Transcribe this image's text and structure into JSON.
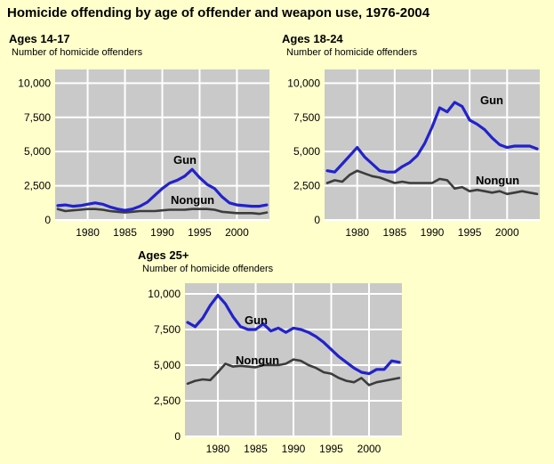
{
  "title": "Homicide offending by age of offender and weapon use, 1976-2004",
  "colors": {
    "background": "#FFFFCC",
    "plot_background": "#C9C9C9",
    "gridline": "#FFFFFF",
    "gun_line": "#2222CC",
    "nongun_line": "#3C3C3C",
    "text": "#000000"
  },
  "chart_data": [
    {
      "type": "line",
      "title": "Ages 14-17",
      "ylabel": "Number of homicide offenders",
      "xlabel": "",
      "x": [
        1976,
        1977,
        1978,
        1979,
        1980,
        1981,
        1982,
        1983,
        1984,
        1985,
        1986,
        1987,
        1988,
        1989,
        1990,
        1991,
        1992,
        1993,
        1994,
        1995,
        1996,
        1997,
        1998,
        1999,
        2000,
        2001,
        2002,
        2003,
        2004
      ],
      "xticks": [
        1980,
        1985,
        1990,
        1995,
        2000
      ],
      "yticks": [
        0,
        2500,
        5000,
        7500,
        10000
      ],
      "ytick_labels": [
        "0",
        "2,500",
        "5,000",
        "7,500",
        "10,000"
      ],
      "ylim": [
        0,
        11000
      ],
      "grid": true,
      "legend_position": "inline-labels",
      "series": [
        {
          "name": "Gun",
          "color": "#2222CC",
          "values": [
            1050,
            1100,
            1000,
            1050,
            1150,
            1250,
            1150,
            950,
            800,
            700,
            800,
            1000,
            1300,
            1800,
            2300,
            2700,
            2900,
            3200,
            3700,
            3100,
            2600,
            2300,
            1700,
            1250,
            1100,
            1050,
            1000,
            1000,
            1100
          ]
        },
        {
          "name": "Nongun",
          "color": "#3C3C3C",
          "values": [
            800,
            650,
            700,
            750,
            800,
            800,
            750,
            650,
            600,
            550,
            600,
            650,
            650,
            650,
            700,
            750,
            750,
            750,
            800,
            800,
            800,
            750,
            600,
            550,
            500,
            500,
            500,
            450,
            550
          ]
        }
      ]
    },
    {
      "type": "line",
      "title": "Ages 18-24",
      "ylabel": "Number of homicide offenders",
      "xlabel": "",
      "x": [
        1976,
        1977,
        1978,
        1979,
        1980,
        1981,
        1982,
        1983,
        1984,
        1985,
        1986,
        1987,
        1988,
        1989,
        1990,
        1991,
        1992,
        1993,
        1994,
        1995,
        1996,
        1997,
        1998,
        1999,
        2000,
        2001,
        2002,
        2003,
        2004
      ],
      "xticks": [
        1980,
        1985,
        1990,
        1995,
        2000
      ],
      "yticks": [
        0,
        2500,
        5000,
        7500,
        10000
      ],
      "ytick_labels": [
        "0",
        "2,500",
        "5,000",
        "7,500",
        "10,000"
      ],
      "ylim": [
        0,
        11000
      ],
      "grid": true,
      "legend_position": "inline-labels",
      "series": [
        {
          "name": "Gun",
          "color": "#2222CC",
          "values": [
            3600,
            3500,
            4100,
            4700,
            5300,
            4600,
            4100,
            3600,
            3500,
            3500,
            3900,
            4200,
            4700,
            5600,
            6800,
            8200,
            7900,
            8600,
            8300,
            7300,
            7000,
            6600,
            6000,
            5500,
            5300,
            5400,
            5400,
            5400,
            5200
          ]
        },
        {
          "name": "Nongun",
          "color": "#3C3C3C",
          "values": [
            2700,
            2900,
            2800,
            3300,
            3600,
            3400,
            3200,
            3100,
            2900,
            2700,
            2800,
            2700,
            2700,
            2700,
            2700,
            3000,
            2900,
            2300,
            2400,
            2100,
            2200,
            2100,
            2000,
            2100,
            1900,
            2000,
            2100,
            2000,
            1900
          ]
        }
      ]
    },
    {
      "type": "line",
      "title": "Ages 25+",
      "ylabel": "Number of homicide offenders",
      "xlabel": "",
      "x": [
        1976,
        1977,
        1978,
        1979,
        1980,
        1981,
        1982,
        1983,
        1984,
        1985,
        1986,
        1987,
        1988,
        1989,
        1990,
        1991,
        1992,
        1993,
        1994,
        1995,
        1996,
        1997,
        1998,
        1999,
        2000,
        2001,
        2002,
        2003,
        2004
      ],
      "xticks": [
        1980,
        1985,
        1990,
        1995,
        2000
      ],
      "yticks": [
        0,
        2500,
        5000,
        7500,
        10000
      ],
      "ytick_labels": [
        "0",
        "2,500",
        "5,000",
        "7,500",
        "10,000"
      ],
      "ylim": [
        0,
        10750
      ],
      "grid": true,
      "legend_position": "inline-labels",
      "series": [
        {
          "name": "Gun",
          "color": "#2222CC",
          "values": [
            8000,
            7700,
            8300,
            9200,
            9900,
            9300,
            8400,
            7700,
            7500,
            7500,
            7900,
            7400,
            7600,
            7300,
            7600,
            7500,
            7300,
            7000,
            6600,
            6100,
            5600,
            5200,
            4800,
            4500,
            4400,
            4700,
            4700,
            5300,
            5200
          ]
        },
        {
          "name": "Nongun",
          "color": "#3C3C3C",
          "values": [
            3700,
            3900,
            4000,
            3950,
            4500,
            5100,
            4900,
            4950,
            4900,
            4850,
            5000,
            5000,
            5000,
            5100,
            5400,
            5300,
            5000,
            4800,
            4500,
            4400,
            4100,
            3900,
            3800,
            4100,
            3600,
            3800,
            3900,
            4000,
            4100
          ]
        }
      ]
    }
  ]
}
